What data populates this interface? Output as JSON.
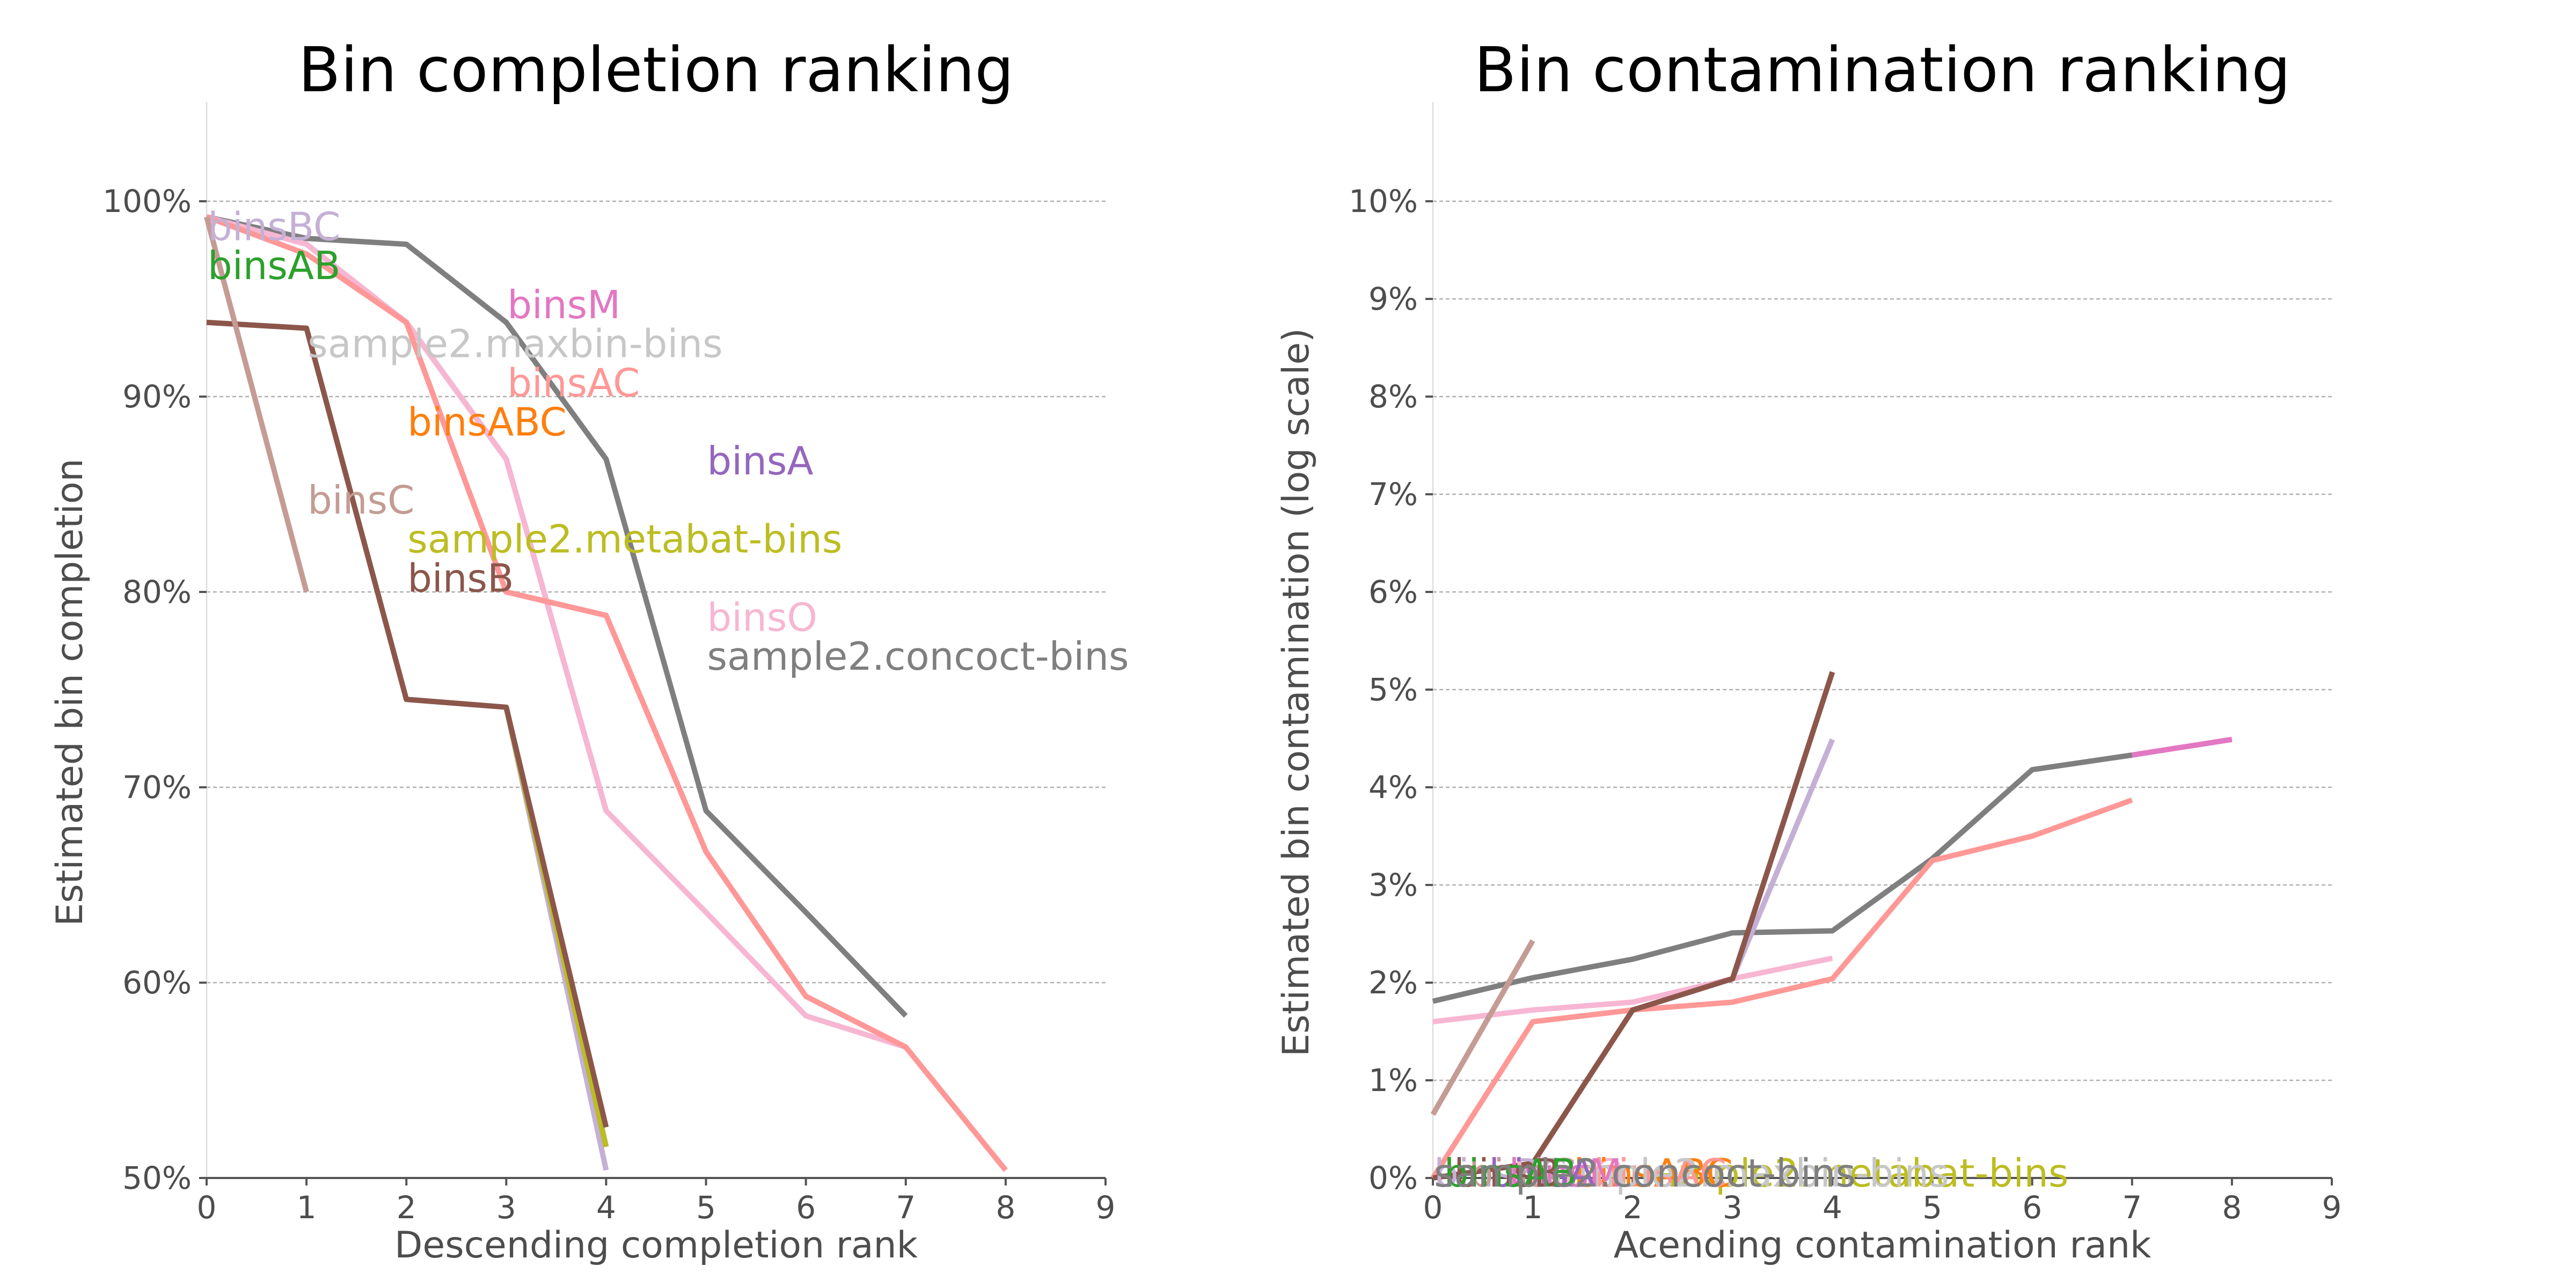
{
  "chart_data": [
    {
      "type": "line",
      "title": "Bin completion ranking",
      "xlabel": "Descending completion rank",
      "ylabel": "Estimated bin completion",
      "xlim": [
        0,
        9
      ],
      "ylim": [
        50,
        100
      ],
      "xticks": [
        0,
        1,
        2,
        3,
        4,
        5,
        6,
        7,
        8,
        9
      ],
      "xtick_labels": [
        "0",
        "1",
        "2",
        "3",
        "4",
        "5",
        "6",
        "7",
        "8",
        "9"
      ],
      "yticks": [
        50,
        60,
        70,
        80,
        90,
        100
      ],
      "ytick_labels": [
        "50%",
        "60%",
        "70%",
        "80%",
        "90%",
        "100%"
      ],
      "grid": "horizontal",
      "series": [
        {
          "name": "sample2.concoct-bins",
          "color": "#7f7f7f",
          "x": [
            0,
            1,
            2,
            3,
            4,
            5,
            6,
            7
          ],
          "y": [
            99.2,
            98.1,
            97.8,
            93.8,
            86.8,
            68.8,
            63.6,
            58.3
          ]
        },
        {
          "name": "binsA",
          "color": "#9467bd",
          "x": [
            0,
            1,
            2,
            3,
            4
          ],
          "y": [
            99.2,
            97.8,
            93.8,
            86.8,
            68.8
          ]
        },
        {
          "name": "binsO",
          "color": "#f7b6d2",
          "x": [
            0,
            1,
            2,
            3,
            4,
            5,
            6,
            7
          ],
          "y": [
            99.2,
            97.8,
            93.8,
            86.8,
            68.8,
            63.6,
            58.3,
            56.7
          ]
        },
        {
          "name": "binsM",
          "color": "#e377c2",
          "x": [
            0,
            1,
            2,
            3,
            4,
            5,
            6,
            7,
            8
          ],
          "y": [
            99.2,
            97.3,
            93.8,
            80.0,
            78.8,
            66.7,
            59.3,
            56.7,
            50.4
          ]
        },
        {
          "name": "binsAC",
          "color": "#ff9896",
          "x": [
            0,
            1,
            2,
            3,
            4,
            5,
            6,
            7,
            8
          ],
          "y": [
            99.2,
            97.3,
            93.8,
            80.0,
            78.8,
            66.7,
            59.3,
            56.7,
            50.4
          ]
        },
        {
          "name": "binsBC",
          "color": "#c5b0d5",
          "x": [
            3,
            4
          ],
          "y": [
            74.1,
            50.4
          ]
        },
        {
          "name": "binsAB",
          "color": "#2ca02c",
          "x": [
            3,
            4
          ],
          "y": [
            74.1,
            51.6
          ]
        },
        {
          "name": "sample2.metabat-bins",
          "color": "#bcbd22",
          "x": [
            3,
            4
          ],
          "y": [
            74.1,
            51.6
          ]
        },
        {
          "name": "binsB",
          "color": "#8c564b",
          "x": [
            0,
            1,
            2,
            3,
            4
          ],
          "y": [
            93.8,
            93.5,
            74.5,
            74.1,
            52.6
          ]
        },
        {
          "name": "binsC",
          "color": "#c49c94",
          "x": [
            0,
            1
          ],
          "y": [
            99.2,
            80.0
          ]
        }
      ],
      "labels": [
        {
          "text": "binsBC",
          "color": "#c5b0d5",
          "x": 0,
          "y": 98.7
        },
        {
          "text": "binsAB",
          "color": "#2ca02c",
          "x": 0,
          "y": 96.7
        },
        {
          "text": "sample2.maxbin-bins",
          "color": "#c7c7c7",
          "x": 1,
          "y": 92.7
        },
        {
          "text": "binsM",
          "color": "#e377c2",
          "x": 3,
          "y": 94.7
        },
        {
          "text": "binsAC",
          "color": "#ff9896",
          "x": 3,
          "y": 90.7
        },
        {
          "text": "binsABC",
          "color": "#ff7f0e",
          "x": 2,
          "y": 88.7
        },
        {
          "text": "binsA",
          "color": "#9467bd",
          "x": 5,
          "y": 86.7
        },
        {
          "text": "binsC",
          "color": "#c49c94",
          "x": 1,
          "y": 84.7
        },
        {
          "text": "sample2.metabat-bins",
          "color": "#bcbd22",
          "x": 2,
          "y": 82.7
        },
        {
          "text": "binsB",
          "color": "#8c564b",
          "x": 2,
          "y": 80.7
        },
        {
          "text": "binsO",
          "color": "#f7b6d2",
          "x": 5,
          "y": 78.7
        },
        {
          "text": "sample2.concoct-bins",
          "color": "#7f7f7f",
          "x": 5,
          "y": 76.7
        }
      ]
    },
    {
      "type": "line",
      "title": "Bin contamination ranking",
      "xlabel": "Acending contamination rank",
      "ylabel": "Estimated bin contamination (log scale)",
      "xlim": [
        0,
        9
      ],
      "ylim": [
        0,
        10
      ],
      "xticks": [
        0,
        1,
        2,
        3,
        4,
        5,
        6,
        7,
        8,
        9
      ],
      "xtick_labels": [
        "0",
        "1",
        "2",
        "3",
        "4",
        "5",
        "6",
        "7",
        "8",
        "9"
      ],
      "yticks": [
        0,
        1,
        2,
        3,
        4,
        5,
        6,
        7,
        8,
        9,
        10
      ],
      "ytick_labels": [
        "0%",
        "1%",
        "2%",
        "3%",
        "4%",
        "5%",
        "6%",
        "7%",
        "8%",
        "9%",
        "10%"
      ],
      "grid": "horizontal",
      "series": [
        {
          "name": "sample2.concoct-bins",
          "color": "#7f7f7f",
          "x": [
            0,
            1,
            2,
            3,
            4,
            5,
            6,
            7
          ],
          "y": [
            1.81,
            2.05,
            2.24,
            2.51,
            2.53,
            3.27,
            4.18,
            4.33
          ]
        },
        {
          "name": "binsM",
          "color": "#e377c2",
          "x": [
            7,
            8
          ],
          "y": [
            4.33,
            4.49
          ]
        },
        {
          "name": "binsO",
          "color": "#f7b6d2",
          "x": [
            0,
            1,
            2,
            3,
            4
          ],
          "y": [
            1.6,
            1.72,
            1.8,
            2.04,
            2.25
          ]
        },
        {
          "name": "binsAC",
          "color": "#ff9896",
          "x": [
            0,
            1,
            2,
            3,
            4,
            5,
            6,
            7
          ],
          "y": [
            0.0,
            1.6,
            1.72,
            1.8,
            2.04,
            3.25,
            3.5,
            3.87
          ]
        },
        {
          "name": "binsBC",
          "color": "#c5b0d5",
          "x": [
            3,
            4
          ],
          "y": [
            2.04,
            4.49
          ]
        },
        {
          "name": "binsB",
          "color": "#8c564b",
          "x": [
            0,
            1,
            2,
            3,
            4
          ],
          "y": [
            0.0,
            0.15,
            1.72,
            2.04,
            5.18
          ]
        },
        {
          "name": "binsC",
          "color": "#c49c94",
          "x": [
            0,
            1
          ],
          "y": [
            0.65,
            2.43
          ]
        }
      ],
      "labels": [
        {
          "text": "binsBC",
          "color": "#c5b0d5",
          "x": 0,
          "y": 0.05
        },
        {
          "text": "binsO",
          "color": "#f7b6d2",
          "x": 0.8,
          "y": 0.05
        },
        {
          "text": "sample2.metabat-bins",
          "color": "#bcbd22",
          "x": 2,
          "y": 0.05
        },
        {
          "text": "binsABC",
          "color": "#ff7f0e",
          "x": 1.4,
          "y": 0.05
        },
        {
          "text": "binsAC",
          "color": "#ff9896",
          "x": 1.6,
          "y": 0.05
        },
        {
          "text": "sample2.maxbin-bins",
          "color": "#c7c7c7",
          "x": 1,
          "y": 0.05
        },
        {
          "text": "binsM",
          "color": "#e377c2",
          "x": 0.75,
          "y": 0.05
        },
        {
          "text": "binsA",
          "color": "#9467bd",
          "x": 0.55,
          "y": 0.05
        },
        {
          "text": "binsC",
          "color": "#c49c94",
          "x": 0.35,
          "y": 0.05
        },
        {
          "text": "binsB",
          "color": "#8c564b",
          "x": 0.2,
          "y": 0.05
        },
        {
          "text": "binsAB",
          "color": "#2ca02c",
          "x": 0.1,
          "y": 0.05
        },
        {
          "text": "sample2.concoct-bins",
          "color": "#7f7f7f",
          "x": 0,
          "y": 0.05
        }
      ]
    }
  ]
}
